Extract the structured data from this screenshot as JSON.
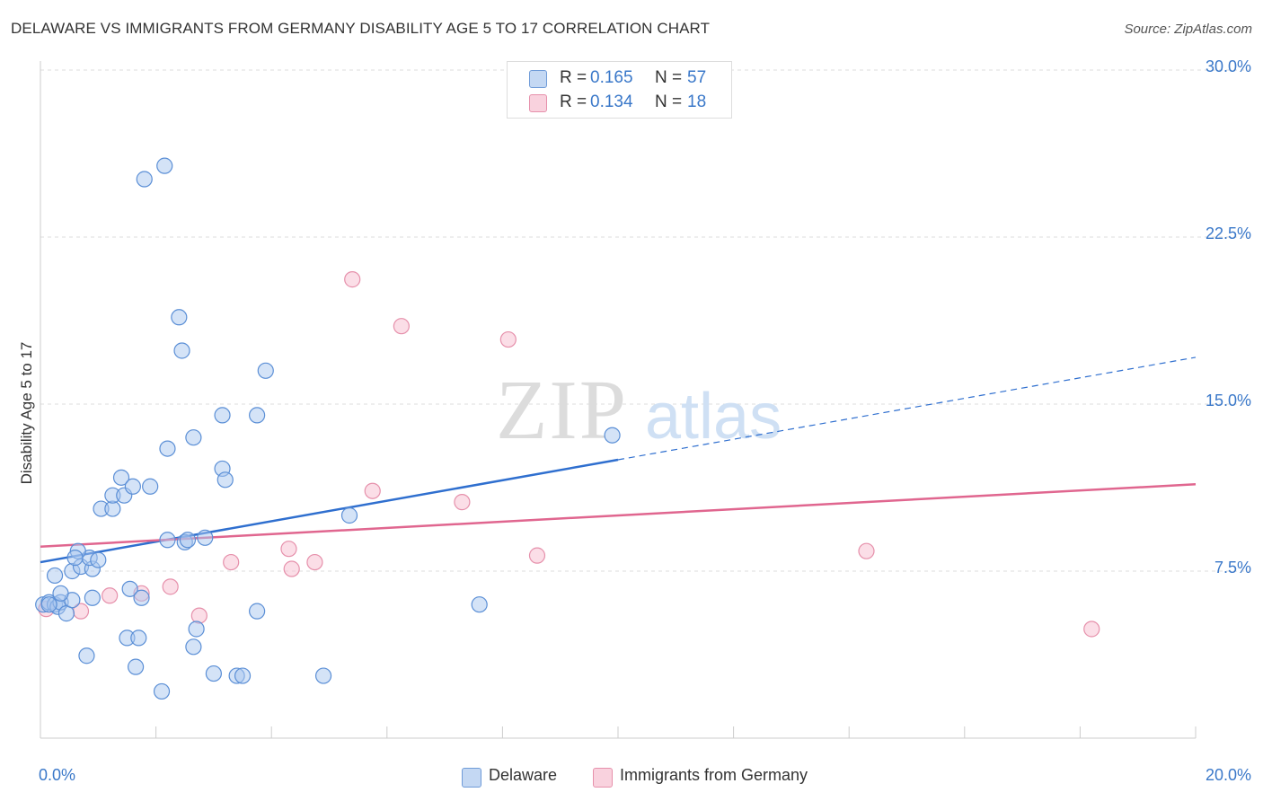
{
  "header": {
    "title": "DELAWARE VS IMMIGRANTS FROM GERMANY DISABILITY AGE 5 TO 17 CORRELATION CHART",
    "source": "Source: ZipAtlas.com"
  },
  "watermark": {
    "zip": "ZIP",
    "atlas": "atlas"
  },
  "legend_top": {
    "rows": [
      {
        "r_label": "R =",
        "r_value": "0.165",
        "n_label": "N =",
        "n_value": "57"
      },
      {
        "r_label": "R =",
        "r_value": "0.134",
        "n_label": "N =",
        "n_value": "18"
      }
    ]
  },
  "legend_bottom": {
    "series_1": "Delaware",
    "series_2": "Immigrants from Germany"
  },
  "colors": {
    "blue_fill": "#a9c8f0",
    "blue_stroke": "#5b8fd6",
    "blue_line": "#2f6fcf",
    "pink_fill": "#f7c3d3",
    "pink_stroke": "#e690ab",
    "pink_line": "#e0668f",
    "tick_label": "#3a78c9",
    "grid": "#dddddd"
  },
  "chart_data": {
    "type": "scatter",
    "title": "DELAWARE VS IMMIGRANTS FROM GERMANY DISABILITY AGE 5 TO 17 CORRELATION CHART",
    "xlabel": "",
    "ylabel": "Disability Age 5 to 17",
    "xlim": [
      0,
      20
    ],
    "ylim": [
      0,
      30
    ],
    "x_tick_labels": [
      "0.0%",
      "20.0%"
    ],
    "y_ticks": [
      7.5,
      15.0,
      22.5,
      30.0
    ],
    "y_tick_labels": [
      "7.5%",
      "15.0%",
      "22.5%",
      "30.0%"
    ],
    "grid": "horizontal dashed",
    "legend_position": "top-center",
    "series": [
      {
        "name": "Delaware",
        "R": 0.165,
        "N": 57,
        "points": [
          [
            0.05,
            6.0
          ],
          [
            0.15,
            6.1
          ],
          [
            0.25,
            6.0
          ],
          [
            0.3,
            5.9
          ],
          [
            0.35,
            6.1
          ],
          [
            0.45,
            5.6
          ],
          [
            0.55,
            6.2
          ],
          [
            0.25,
            7.3
          ],
          [
            0.35,
            6.5
          ],
          [
            0.55,
            7.5
          ],
          [
            0.7,
            7.7
          ],
          [
            0.9,
            7.6
          ],
          [
            0.85,
            8.1
          ],
          [
            0.65,
            8.4
          ],
          [
            0.6,
            8.1
          ],
          [
            0.9,
            6.3
          ],
          [
            1.0,
            8.0
          ],
          [
            1.05,
            10.3
          ],
          [
            1.25,
            10.3
          ],
          [
            1.25,
            10.9
          ],
          [
            1.45,
            10.9
          ],
          [
            1.4,
            11.7
          ],
          [
            1.6,
            11.3
          ],
          [
            1.9,
            11.3
          ],
          [
            1.55,
            6.7
          ],
          [
            1.75,
            6.3
          ],
          [
            1.5,
            4.5
          ],
          [
            1.7,
            4.5
          ],
          [
            0.8,
            3.7
          ],
          [
            1.65,
            3.2
          ],
          [
            2.1,
            2.1
          ],
          [
            2.2,
            8.9
          ],
          [
            2.5,
            8.8
          ],
          [
            2.55,
            8.9
          ],
          [
            2.85,
            9.0
          ],
          [
            2.2,
            13.0
          ],
          [
            2.65,
            13.5
          ],
          [
            3.15,
            12.1
          ],
          [
            3.2,
            11.6
          ],
          [
            3.15,
            14.5
          ],
          [
            3.75,
            14.5
          ],
          [
            3.9,
            16.5
          ],
          [
            2.4,
            18.9
          ],
          [
            2.45,
            17.4
          ],
          [
            2.7,
            4.9
          ],
          [
            2.65,
            4.1
          ],
          [
            3.0,
            2.9
          ],
          [
            3.4,
            2.8
          ],
          [
            3.5,
            2.8
          ],
          [
            3.75,
            5.7
          ],
          [
            4.9,
            2.8
          ],
          [
            5.35,
            10.0
          ],
          [
            7.6,
            6.0
          ],
          [
            9.9,
            13.6
          ],
          [
            1.8,
            25.1
          ],
          [
            2.15,
            25.7
          ],
          [
            0.15,
            6.0
          ]
        ],
        "trend": {
          "x_start": 0.0,
          "y_start": 7.9,
          "x_solid_end": 10.0,
          "x_end": 20.0,
          "y_end": 17.1
        }
      },
      {
        "name": "Immigrants from Germany",
        "R": 0.134,
        "N": 18,
        "points": [
          [
            0.1,
            5.8
          ],
          [
            0.7,
            5.7
          ],
          [
            1.2,
            6.4
          ],
          [
            1.75,
            6.5
          ],
          [
            2.25,
            6.8
          ],
          [
            2.75,
            5.5
          ],
          [
            3.3,
            7.9
          ],
          [
            4.3,
            8.5
          ],
          [
            4.35,
            7.6
          ],
          [
            4.75,
            7.9
          ],
          [
            5.4,
            20.6
          ],
          [
            5.75,
            11.1
          ],
          [
            6.25,
            18.5
          ],
          [
            7.3,
            10.6
          ],
          [
            8.1,
            17.9
          ],
          [
            8.6,
            8.2
          ],
          [
            14.3,
            8.4
          ],
          [
            18.2,
            4.9
          ]
        ],
        "trend": {
          "x_start": 0.0,
          "y_start": 8.6,
          "x_end": 20.0,
          "y_end": 11.4
        }
      }
    ]
  }
}
